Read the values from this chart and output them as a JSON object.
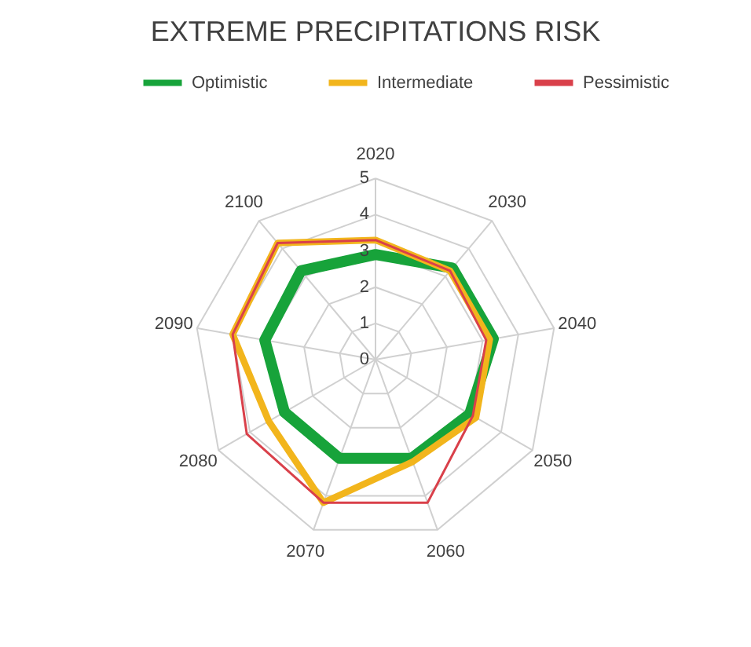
{
  "chart_data": {
    "type": "radar",
    "title": "EXTREME PRECIPITATIONS RISK",
    "categories": [
      "2020",
      "2030",
      "2040",
      "2050",
      "2060",
      "2070",
      "2080",
      "2090",
      "2100"
    ],
    "series": [
      {
        "name": "Optimistic",
        "color": "#17a33a",
        "values": [
          2.9,
          3.3,
          3.3,
          3.0,
          2.9,
          2.9,
          2.9,
          3.1,
          3.2
        ]
      },
      {
        "name": "Intermediate",
        "color": "#f2b51c",
        "values": [
          3.3,
          3.2,
          3.2,
          3.2,
          3.0,
          4.2,
          3.4,
          4.0,
          4.2
        ]
      },
      {
        "name": "Pessimistic",
        "color": "#d9404a",
        "values": [
          3.3,
          3.2,
          3.1,
          3.1,
          4.2,
          4.2,
          4.1,
          4.0,
          4.2
        ]
      }
    ],
    "ylim": [
      0,
      5
    ],
    "yticks": [
      0,
      1,
      2,
      3,
      4,
      5
    ],
    "grid": true,
    "legend": "top"
  }
}
